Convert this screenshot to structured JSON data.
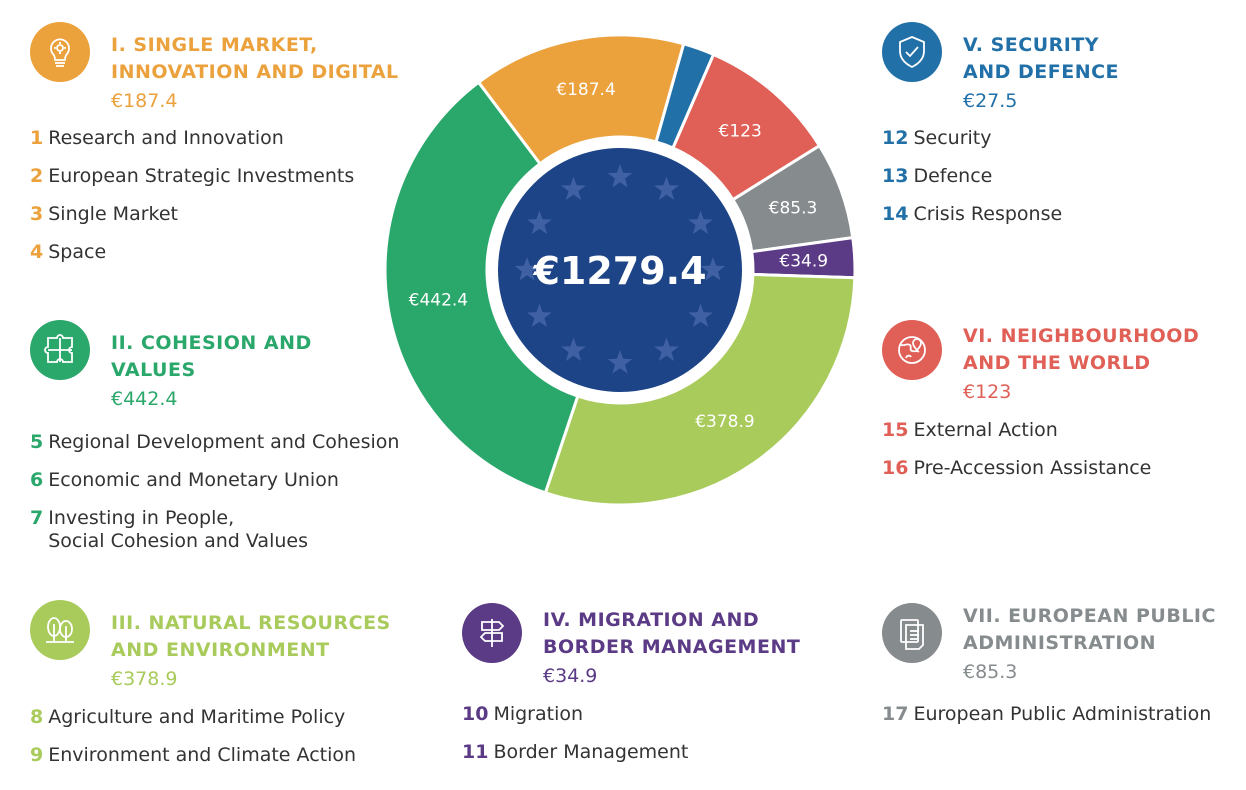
{
  "chart_data": {
    "type": "donut",
    "total_label": "€1279.4",
    "slices": [
      {
        "name": "I. SINGLE MARKET, INNOVATION AND DIGITAL",
        "value": 187.4,
        "label": "€187.4",
        "color": "#eba13c"
      },
      {
        "name": "V. SECURITY AND DEFENCE",
        "value": 27.5,
        "label": "€27.5",
        "color": "#2170a8"
      },
      {
        "name": "VI. NEIGHBOURHOOD AND THE WORLD",
        "value": 123,
        "label": "€123",
        "color": "#e05f56"
      },
      {
        "name": "VII. EUROPEAN PUBLIC ADMINISTRATION",
        "value": 85.3,
        "label": "€85.3",
        "color": "#868b8e"
      },
      {
        "name": "IV. MIGRATION AND BORDER MANAGEMENT",
        "value": 34.9,
        "label": "€34.9",
        "color": "#5b3a86"
      },
      {
        "name": "III. NATURAL RESOURCES AND ENVIRONMENT",
        "value": 378.9,
        "label": "€378.9",
        "color": "#a8cb5b"
      },
      {
        "name": "II. COHESION AND VALUES",
        "value": 442.4,
        "label": "€442.4",
        "color": "#2aa76a"
      }
    ],
    "center_color": "#1d4487",
    "star_color": "#3f61a3"
  },
  "headings": {
    "h1": {
      "title_line1": "I. SINGLE MARKET,",
      "title_line2": "INNOVATION AND DIGITAL",
      "amount": "€187.4",
      "color": "#eba13c",
      "icon": "lightbulb-gear-icon",
      "items": [
        {
          "num": "1",
          "text": "Research and Innovation"
        },
        {
          "num": "2",
          "text": "European Strategic Investments"
        },
        {
          "num": "3",
          "text": "Single Market"
        },
        {
          "num": "4",
          "text": "Space"
        }
      ]
    },
    "h2": {
      "title_line1": "II. COHESION AND",
      "title_line2": "VALUES",
      "amount": "€442.4",
      "color": "#2aa76a",
      "icon": "puzzle-icon",
      "items": [
        {
          "num": "5",
          "text": "Regional Development and Cohesion"
        },
        {
          "num": "6",
          "text": "Economic and Monetary Union"
        },
        {
          "num": "7",
          "text": "Investing in People,",
          "text2": "Social Cohesion and Values"
        }
      ]
    },
    "h3": {
      "title_line1": "III. NATURAL RESOURCES",
      "title_line2": "AND ENVIRONMENT",
      "amount": "€378.9",
      "color": "#a8cb5b",
      "icon": "trees-icon",
      "items": [
        {
          "num": "8",
          "text": "Agriculture and Maritime Policy"
        },
        {
          "num": "9",
          "text": "Environment and Climate Action"
        }
      ]
    },
    "h4": {
      "title_line1": "IV. MIGRATION AND",
      "title_line2": "BORDER MANAGEMENT",
      "amount": "€34.9",
      "color": "#5b3a86",
      "icon": "signpost-icon",
      "items": [
        {
          "num": "10",
          "text": "Migration"
        },
        {
          "num": "11",
          "text": "Border Management"
        }
      ]
    },
    "h5": {
      "title_line1": "V. SECURITY",
      "title_line2": "AND DEFENCE",
      "amount": "€27.5",
      "color": "#2170a8",
      "icon": "shield-check-icon",
      "items": [
        {
          "num": "12",
          "text": "Security"
        },
        {
          "num": "13",
          "text": "Defence"
        },
        {
          "num": "14",
          "text": "Crisis Response"
        }
      ]
    },
    "h6": {
      "title_line1": "VI. NEIGHBOURHOOD",
      "title_line2": "AND THE WORLD",
      "amount": "€123",
      "color": "#e05f56",
      "icon": "globe-pin-icon",
      "items": [
        {
          "num": "15",
          "text": "External Action"
        },
        {
          "num": "16",
          "text": "Pre-Accession Assistance"
        }
      ]
    },
    "h7": {
      "title_line1": "VII. EUROPEAN PUBLIC",
      "title_line2": "ADMINISTRATION",
      "amount": "€85.3",
      "color": "#868b8e",
      "icon": "documents-icon",
      "items": [
        {
          "num": "17",
          "text": "European Public Administration"
        }
      ]
    }
  }
}
